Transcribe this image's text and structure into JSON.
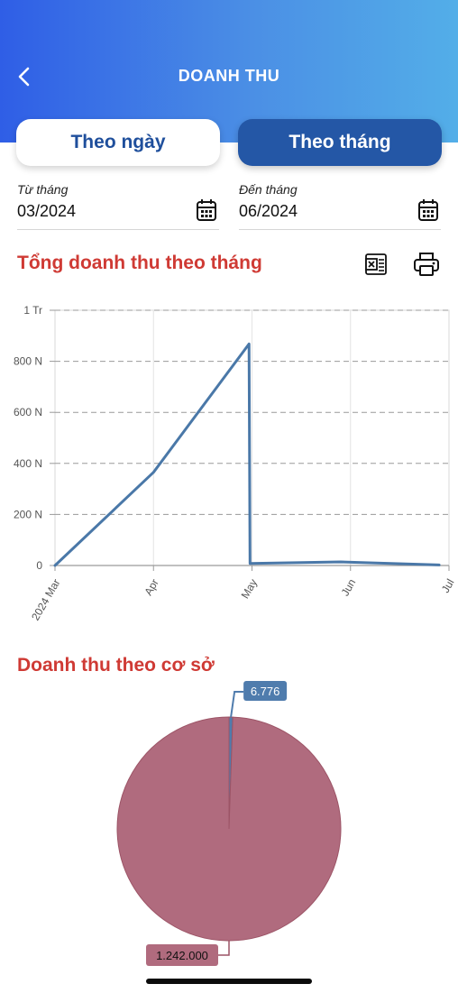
{
  "header": {
    "title": "DOANH THU"
  },
  "tabs": {
    "day_label": "Theo ngày",
    "month_label": "Theo tháng",
    "active": "month"
  },
  "filters": {
    "from": {
      "label": "Từ tháng",
      "value": "03/2024"
    },
    "to": {
      "label": "Đến tháng",
      "value": "06/2024"
    }
  },
  "line_section": {
    "title": "Tổng doanh thu theo tháng"
  },
  "pie_section": {
    "title": "Doanh thu theo cơ sở"
  },
  "icons": {
    "back": "chevron-left-icon",
    "calendar": "calendar-icon",
    "excel": "excel-export-icon",
    "print": "printer-icon"
  },
  "colors": {
    "header_start": "#2f5ee6",
    "header_end": "#53aee8",
    "active_tab": "#2457a6",
    "inactive_tab_text": "#1f4f9c",
    "section_title": "#cf3a34",
    "line": "#4a78a8",
    "pie_main": "#b06b7e",
    "pie_small": "#4f7cad"
  },
  "chart_data": [
    {
      "type": "line",
      "title": "",
      "x_tick_labels": [
        "2024 Mar",
        "Apr",
        "May",
        "Jun",
        "Jul"
      ],
      "y_tick_labels": [
        "0",
        "200 N",
        "400 N",
        "600 N",
        "800 N",
        "1 Tr"
      ],
      "ylim": [
        0,
        1000000
      ],
      "grid": true,
      "series": [
        {
          "x": [
            0,
            1,
            1.97,
            1.98,
            2.9,
            3.9
          ],
          "y": [
            0,
            365000,
            868000,
            8000,
            14000,
            2000
          ]
        }
      ]
    },
    {
      "type": "pie",
      "slices": [
        {
          "value": 6776,
          "label": "6.776"
        },
        {
          "value": 1242000,
          "label": "1.242.000"
        }
      ]
    }
  ]
}
